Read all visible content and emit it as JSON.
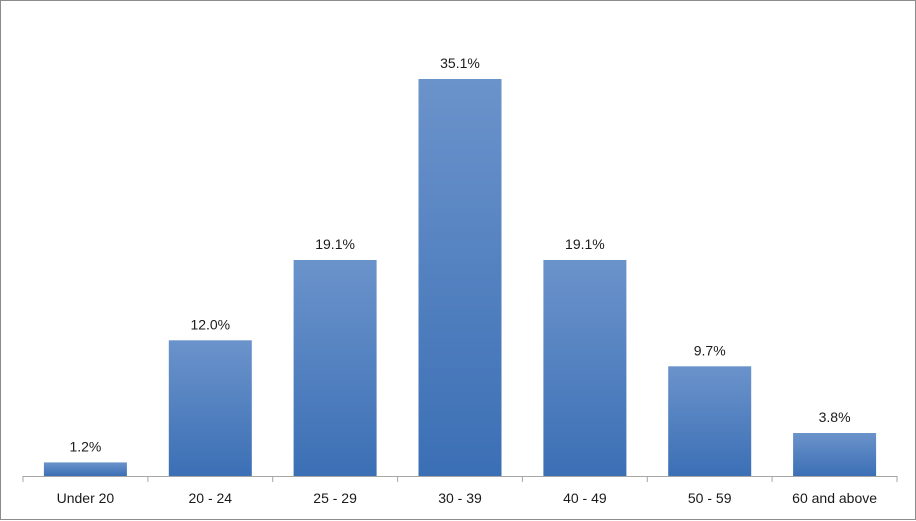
{
  "chart_data": {
    "type": "bar",
    "categories": [
      "Under 20",
      "20 - 24",
      "25 - 29",
      "30 - 39",
      "40 - 49",
      "50 - 59",
      "60 and above"
    ],
    "values": [
      1.2,
      12.0,
      19.1,
      35.1,
      19.1,
      9.7,
      3.8
    ],
    "data_labels": [
      "1.2%",
      "12.0%",
      "19.1%",
      "35.1%",
      "19.1%",
      "9.7%",
      "3.8%"
    ],
    "title": "",
    "xlabel": "",
    "ylabel": "",
    "ylim": [
      0,
      35.1
    ],
    "grid": false,
    "legend": "none",
    "colors": {
      "bar_top": "#6b93cb",
      "bar_bottom": "#3b6fb5",
      "axis": "#a6a6a6"
    }
  }
}
